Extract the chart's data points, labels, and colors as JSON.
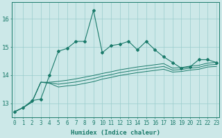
{
  "xlabel": "Humidex (Indice chaleur)",
  "x": [
    0,
    1,
    2,
    3,
    4,
    5,
    6,
    7,
    8,
    9,
    10,
    11,
    12,
    13,
    14,
    15,
    16,
    17,
    18,
    19,
    20,
    21,
    22,
    23
  ],
  "line_main": [
    12.7,
    12.85,
    13.1,
    13.15,
    14.0,
    14.85,
    14.95,
    15.2,
    15.2,
    16.3,
    14.8,
    15.05,
    15.1,
    15.2,
    14.9,
    15.2,
    14.9,
    14.65,
    14.45,
    14.25,
    14.3,
    14.55,
    14.55,
    14.45
  ],
  "line_upper": [
    null,
    null,
    null,
    13.85,
    14.0,
    null,
    null,
    null,
    null,
    null,
    null,
    null,
    null,
    null,
    null,
    null,
    null,
    null,
    null,
    null,
    null,
    null,
    null,
    null
  ],
  "line_smooth1": [
    12.7,
    12.85,
    13.05,
    13.75,
    13.75,
    13.78,
    13.82,
    13.87,
    13.93,
    13.99,
    14.06,
    14.12,
    14.19,
    14.24,
    14.29,
    14.33,
    14.37,
    14.41,
    14.25,
    14.27,
    14.32,
    14.35,
    14.43,
    14.45
  ],
  "line_smooth2": [
    12.7,
    12.85,
    13.05,
    13.75,
    13.73,
    13.68,
    13.72,
    13.76,
    13.82,
    13.88,
    13.96,
    14.02,
    14.09,
    14.14,
    14.19,
    14.23,
    14.27,
    14.31,
    14.18,
    14.2,
    14.25,
    14.28,
    14.36,
    14.38
  ],
  "line_smooth3": [
    12.7,
    12.85,
    13.05,
    13.75,
    13.71,
    13.58,
    13.62,
    13.65,
    13.71,
    13.77,
    13.86,
    13.92,
    13.99,
    14.04,
    14.09,
    14.13,
    14.17,
    14.21,
    14.11,
    14.13,
    14.18,
    14.21,
    14.29,
    14.31
  ],
  "bg_color": "#cce8e8",
  "grid_color": "#99cccc",
  "line_color": "#1a7a6a",
  "ylim_min": 12.5,
  "ylim_max": 16.6,
  "xlim_min": -0.3,
  "xlim_max": 23.3,
  "yticks": [
    13,
    14,
    15,
    16
  ],
  "xlabel_fontsize": 6.5,
  "tick_fontsize": 5.5
}
